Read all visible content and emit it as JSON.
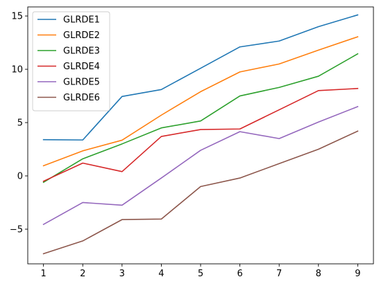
{
  "chart_data": {
    "type": "line",
    "title": "",
    "xlabel": "",
    "ylabel": "",
    "x": [
      1,
      2,
      3,
      4,
      5,
      6,
      7,
      8,
      9
    ],
    "xlim": [
      0.6,
      9.4
    ],
    "ylim": [
      -8.25,
      15.85
    ],
    "xticks": [
      1,
      2,
      3,
      4,
      5,
      6,
      7,
      8,
      9
    ],
    "yticks": [
      -5,
      0,
      5,
      10,
      15
    ],
    "grid": false,
    "legend_position": "top-left",
    "series": [
      {
        "name": "GLRDE1",
        "color": "#1f77b4",
        "values": [
          3.4,
          3.37,
          7.45,
          8.1,
          10.1,
          12.1,
          12.65,
          14.0,
          15.1
        ]
      },
      {
        "name": "GLRDE2",
        "color": "#ff7f0e",
        "values": [
          0.95,
          2.35,
          3.35,
          5.7,
          7.9,
          9.75,
          10.5,
          11.8,
          13.05
        ]
      },
      {
        "name": "GLRDE3",
        "color": "#2ca02c",
        "values": [
          -0.6,
          1.6,
          3.0,
          4.5,
          5.15,
          7.5,
          8.3,
          9.35,
          11.45
        ]
      },
      {
        "name": "GLRDE4",
        "color": "#d62728",
        "values": [
          -0.5,
          1.2,
          0.4,
          3.7,
          4.35,
          4.4,
          6.2,
          8.0,
          8.2
        ]
      },
      {
        "name": "GLRDE5",
        "color": "#9467bd",
        "values": [
          -4.55,
          -2.5,
          -2.75,
          -0.2,
          2.4,
          4.15,
          3.5,
          5.05,
          6.5
        ]
      },
      {
        "name": "GLRDE6",
        "color": "#8c564b",
        "values": [
          -7.3,
          -6.1,
          -4.1,
          -4.05,
          -1.0,
          -0.2,
          1.15,
          2.5,
          4.2
        ]
      }
    ]
  }
}
